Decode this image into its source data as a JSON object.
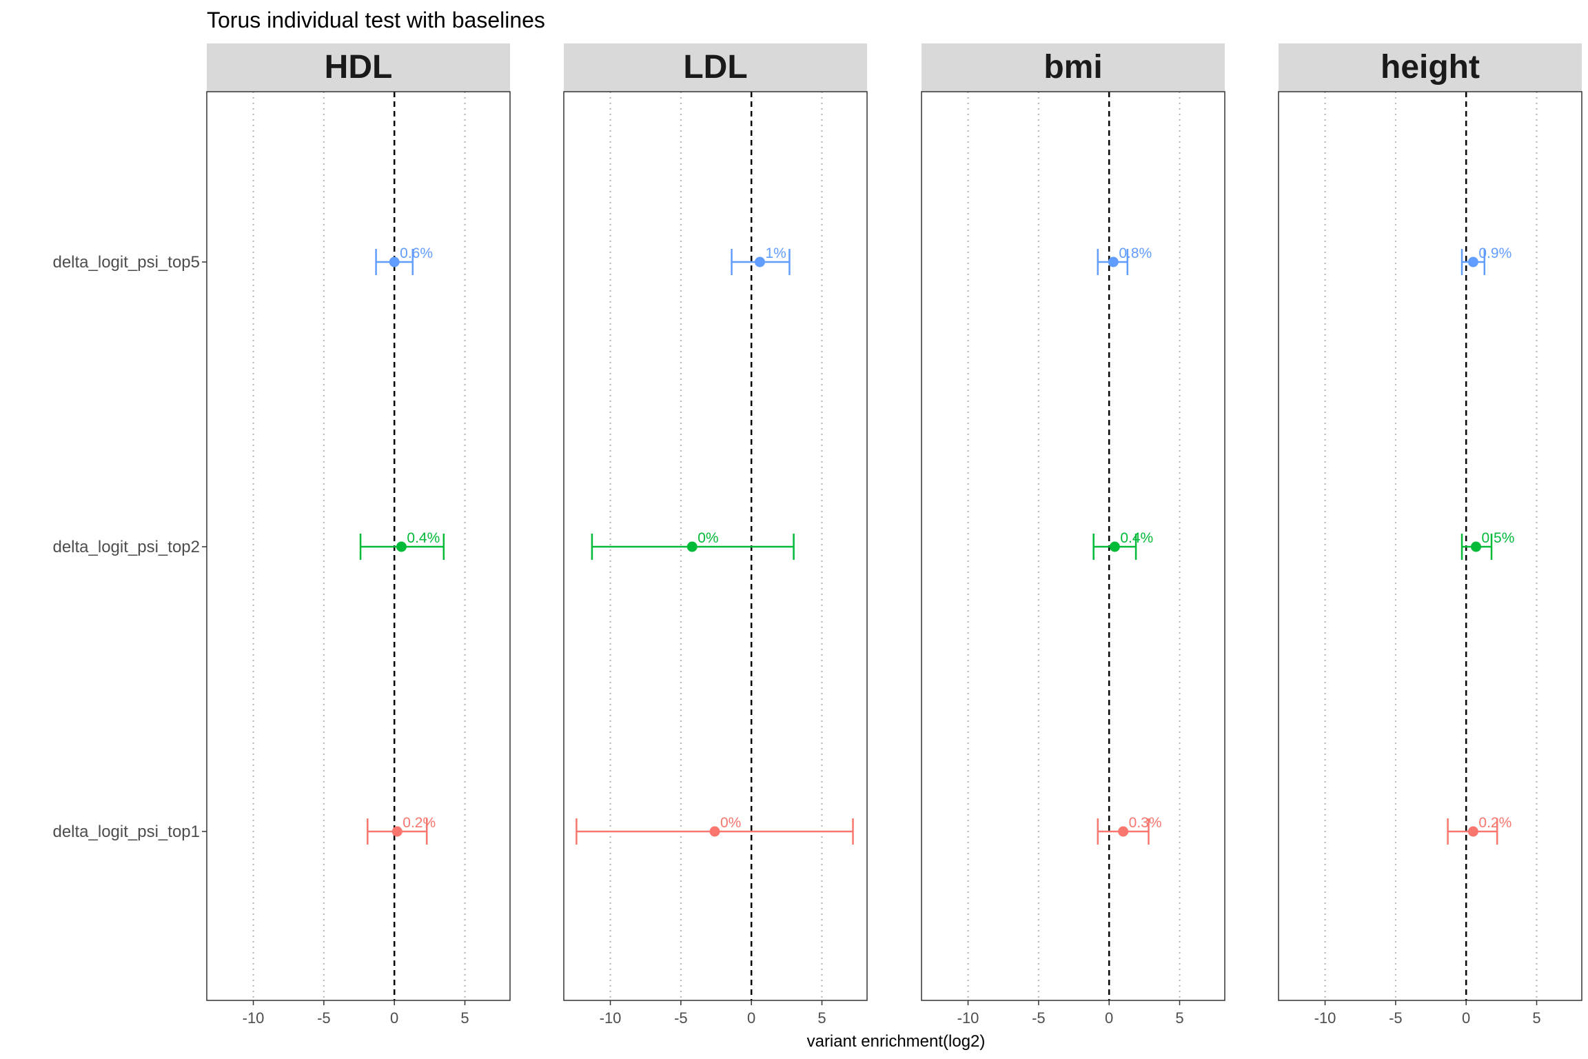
{
  "chart_data": {
    "type": "scatter",
    "subtype": "forest-plot-with-error-bars",
    "title": "Torus individual test with baselines",
    "xlabel": "variant enrichment(log2)",
    "ylabel": "",
    "xlim": [
      -13.3,
      8.2
    ],
    "xticks": [
      -10,
      -5,
      0,
      5
    ],
    "reference_line": {
      "x": 0,
      "style": "dashed"
    },
    "grid": "vertical-dotted",
    "legend": "none",
    "categories": [
      "delta_logit_psi_top5",
      "delta_logit_psi_top2",
      "delta_logit_psi_top1"
    ],
    "series_colors": {
      "delta_logit_psi_top5": "#619CFF",
      "delta_logit_psi_top2": "#00BA38",
      "delta_logit_psi_top1": "#F8766D"
    },
    "panels": [
      {
        "name": "HDL",
        "points": [
          {
            "category": "delta_logit_psi_top5",
            "estimate": 0.0,
            "low": -1.3,
            "high": 1.3,
            "label": "0.6%"
          },
          {
            "category": "delta_logit_psi_top2",
            "estimate": 0.5,
            "low": -2.4,
            "high": 3.5,
            "label": "0.4%"
          },
          {
            "category": "delta_logit_psi_top1",
            "estimate": 0.2,
            "low": -1.9,
            "high": 2.3,
            "label": "0.2%"
          }
        ]
      },
      {
        "name": "LDL",
        "points": [
          {
            "category": "delta_logit_psi_top5",
            "estimate": 0.6,
            "low": -1.4,
            "high": 2.7,
            "label": "1%"
          },
          {
            "category": "delta_logit_psi_top2",
            "estimate": -4.2,
            "low": -11.3,
            "high": 3.0,
            "label": "0%"
          },
          {
            "category": "delta_logit_psi_top1",
            "estimate": -2.6,
            "low": -12.4,
            "high": 7.2,
            "label": "0%"
          }
        ]
      },
      {
        "name": "bmi",
        "points": [
          {
            "category": "delta_logit_psi_top5",
            "estimate": 0.3,
            "low": -0.8,
            "high": 1.3,
            "label": "0.8%"
          },
          {
            "category": "delta_logit_psi_top2",
            "estimate": 0.4,
            "low": -1.1,
            "high": 1.9,
            "label": "0.4%"
          },
          {
            "category": "delta_logit_psi_top1",
            "estimate": 1.0,
            "low": -0.8,
            "high": 2.8,
            "label": "0.3%"
          }
        ]
      },
      {
        "name": "height",
        "points": [
          {
            "category": "delta_logit_psi_top5",
            "estimate": 0.5,
            "low": -0.3,
            "high": 1.3,
            "label": "0.9%"
          },
          {
            "category": "delta_logit_psi_top2",
            "estimate": 0.7,
            "low": -0.3,
            "high": 1.8,
            "label": "0.5%"
          },
          {
            "category": "delta_logit_psi_top1",
            "estimate": 0.5,
            "low": -1.3,
            "high": 2.2,
            "label": "0.2%"
          }
        ]
      }
    ]
  }
}
